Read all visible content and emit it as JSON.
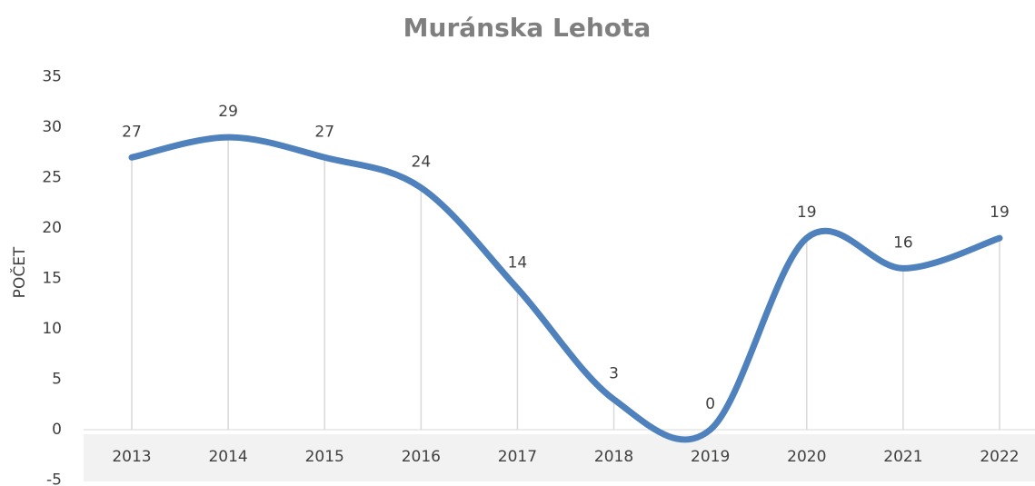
{
  "chart_data": {
    "type": "line",
    "title": "Muránska Lehota",
    "y_label": "POČET",
    "categories": [
      "2013",
      "2014",
      "2015",
      "2016",
      "2017",
      "2018",
      "2019",
      "2020",
      "2021",
      "2022"
    ],
    "values": [
      27,
      29,
      27,
      24,
      14,
      3,
      0,
      19,
      16,
      19
    ],
    "color": "#4f81bd",
    "smooth": true,
    "drop_lines": true,
    "ylim": [
      -5,
      35
    ],
    "yticks": [
      -5,
      0,
      5,
      10,
      15,
      20,
      25,
      30,
      35
    ],
    "grid": false
  }
}
